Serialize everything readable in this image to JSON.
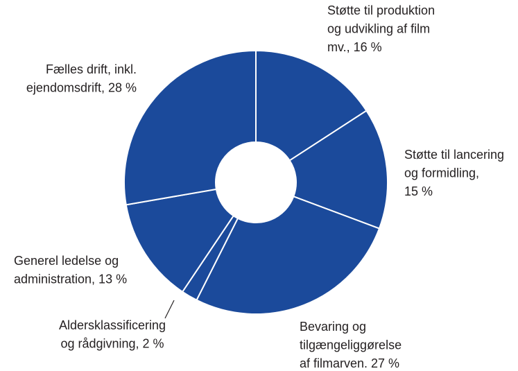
{
  "chart_data": {
    "type": "donut",
    "categories": [
      [
        "Støtte til produktion",
        "og udvikling af film",
        "mv., 16 %"
      ],
      [
        "Støtte til lancering",
        "og formidling,",
        "15 %"
      ],
      [
        "Bevaring og",
        "tilgængeliggørelse",
        "af filmarven. 27 %"
      ],
      [
        "Aldersklassificering",
        "og rådgivning, 2 %"
      ],
      [
        "Generel ledelse og",
        "administration, 13 %"
      ],
      [
        "Fælles drift, inkl.",
        "ejendomsdrift, 28 %"
      ]
    ],
    "values": [
      16,
      15,
      27,
      2,
      13,
      28
    ],
    "color": "#1b4a9b"
  }
}
